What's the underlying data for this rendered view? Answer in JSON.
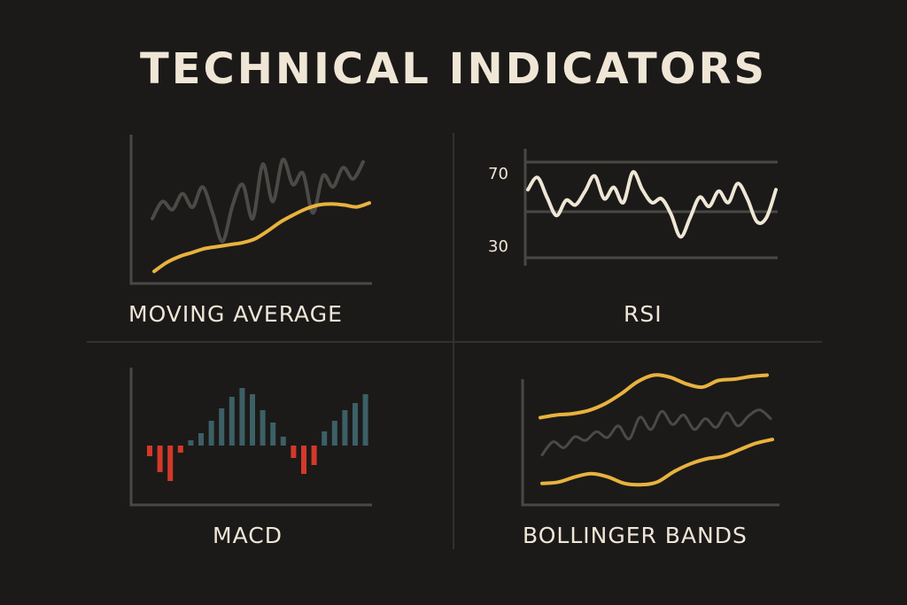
{
  "title": "TECHNICAL INDICATORS",
  "colors": {
    "background": "#1b1a19",
    "axis": "#4a4845",
    "price_line": "#4b4a47",
    "accent_yellow": "#e9b23e",
    "rsi_line": "#efe6d6",
    "macd_positive": "#3d5f66",
    "macd_negative": "#d4382a",
    "text": "#efe6d6"
  },
  "chart_data": [
    {
      "id": "moving_average",
      "type": "line",
      "title": "MOVING AVERAGE",
      "series": [
        {
          "role": "price",
          "color": "#4b4a47",
          "values": [
            40,
            55,
            48,
            62,
            50,
            68,
            45,
            20,
            52,
            70,
            40,
            88,
            55,
            92,
            70,
            80,
            45,
            78,
            68,
            85,
            75,
            90
          ]
        },
        {
          "role": "moving_average",
          "color": "#e9b23e",
          "values": [
            5,
            14,
            20,
            24,
            28,
            30,
            32,
            34,
            38,
            46,
            55,
            62,
            68,
            72,
            73,
            72,
            70,
            74
          ]
        }
      ]
    },
    {
      "id": "rsi",
      "type": "line",
      "title": "RSI",
      "yticks": [
        "70",
        "30"
      ],
      "series": [
        {
          "role": "rsi",
          "color": "#efe6d6",
          "values": [
            72,
            88,
            62,
            38,
            58,
            52,
            70,
            90,
            60,
            75,
            55,
            95,
            72,
            55,
            60,
            40,
            10,
            35,
            62,
            50,
            70,
            55,
            80,
            60,
            30,
            35,
            72
          ]
        }
      ]
    },
    {
      "id": "macd",
      "type": "bar",
      "title": "MACD",
      "values": [
        -12,
        -30,
        -40,
        -8,
        6,
        14,
        28,
        42,
        55,
        65,
        58,
        40,
        26,
        10,
        -14,
        -32,
        -22,
        16,
        28,
        40,
        48,
        58
      ]
    },
    {
      "id": "bollinger_bands",
      "type": "line",
      "title": "BOLLINGER BANDS",
      "series": [
        {
          "role": "upper_band",
          "color": "#e9b23e",
          "values": [
            34,
            38,
            40,
            45,
            55,
            70,
            88,
            98,
            95,
            85,
            80,
            90,
            92,
            96,
            98
          ]
        },
        {
          "role": "price",
          "color": "#4b4a47",
          "values": [
            20,
            38,
            30,
            45,
            40,
            52,
            44,
            60,
            42,
            72,
            55,
            80,
            62,
            75,
            55,
            70,
            58,
            78,
            60,
            74,
            82,
            70
          ]
        },
        {
          "role": "lower_band",
          "color": "#e9b23e",
          "values": [
            10,
            12,
            20,
            25,
            20,
            10,
            8,
            12,
            28,
            40,
            48,
            52,
            62,
            72,
            78
          ]
        }
      ]
    }
  ]
}
